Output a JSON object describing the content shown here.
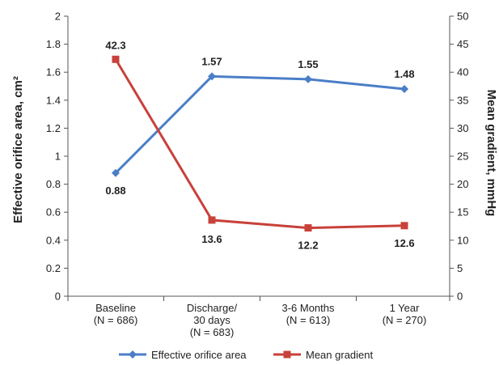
{
  "chart_data": {
    "type": "line",
    "categories": [
      [
        "Baseline",
        "(N = 686)"
      ],
      [
        "Discharge/",
        "30 days",
        "(N = 683)"
      ],
      [
        "3-6 Months",
        "(N = 613)"
      ],
      [
        "1 Year",
        "(N = 270)"
      ]
    ],
    "y_left": {
      "label": "Effective orifice area, cm²",
      "min": 0,
      "max": 2,
      "ticks": [
        "0",
        "0.2",
        "0.4",
        "0.6",
        "0.8",
        "1",
        "1.2",
        "1.4",
        "1.6",
        "1.8",
        "2"
      ]
    },
    "y_right": {
      "label": "Mean gradient, mmHg",
      "min": 0,
      "max": 50,
      "ticks": [
        "0",
        "5",
        "10",
        "15",
        "20",
        "25",
        "30",
        "35",
        "40",
        "45",
        "50"
      ]
    },
    "series": [
      {
        "name": "Effective orifice area",
        "axis": "left",
        "color": "#4a7ec8",
        "marker": "diamond",
        "values": [
          0.88,
          1.57,
          1.55,
          1.48
        ],
        "labels": [
          "0.88",
          "1.57",
          "1.55",
          "1.48"
        ]
      },
      {
        "name": "Mean gradient",
        "axis": "right",
        "color": "#c8413a",
        "marker": "square",
        "values": [
          42.3,
          13.6,
          12.2,
          12.6
        ],
        "labels": [
          "42.3",
          "13.6",
          "12.2",
          "12.6"
        ]
      }
    ],
    "grid": false,
    "legend_position": "bottom"
  }
}
